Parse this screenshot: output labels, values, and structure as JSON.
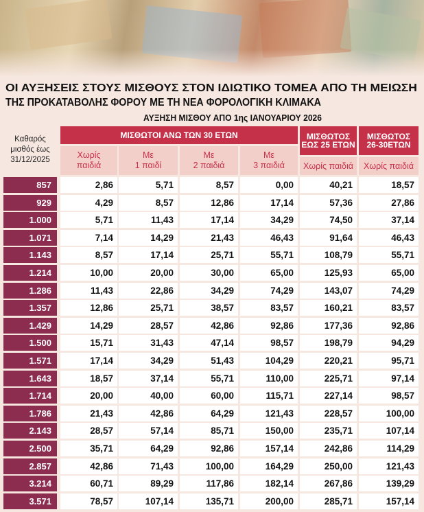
{
  "title": [
    "ΟΙ ΑΥΞΗΣΕΙΣ ΣΤΟΥΣ ΜΙΣΘΟΥΣ ΣΤΟΝ ΙΔΙΩΤΙΚΟ ΤΟΜΕΑ ΑΠΟ ΤΗ ΜΕΙΩΣΗ",
    "ΤΗΣ ΠΡΟΚΑΤΑΒΟΛΗΣ ΦΟΡΟΥ ΜΕ ΤΗ ΝΕΑ ΦΟΡΟΛΟΓΙΚΗ ΚΛΙΜΑΚΑ"
  ],
  "subtitle": "ΑΥΞΗΣΗ ΜΙΣΘΟΥ ΑΠΟ 1ης ΙΑΝΟΥΑΡΙΟΥ 2026",
  "table": {
    "corner_label": [
      "Καθαρός",
      "μισθός έως",
      "31/12/2025"
    ],
    "group_headers": [
      [
        "ΜΙΣΘΩΤΟΙ ΑΝΩ ΤΩΝ 30 ΕΤΩΝ"
      ],
      [
        "ΜΙΣΘΩΤΟΣ",
        "ΕΩΣ 25 ΕΤΩΝ"
      ],
      [
        "ΜΙΣΘΩΤΟΣ",
        "26-30ΕΤΩΝ"
      ]
    ],
    "sub_headers": [
      [
        "Χωρίς",
        "παιδιά"
      ],
      [
        "Με",
        "1 παιδί"
      ],
      [
        "Με",
        "2 παιδιά"
      ],
      [
        "Με",
        "3 παιδιά"
      ],
      [
        "Χωρίς παιδιά"
      ],
      [
        "Χωρίς παιδιά"
      ]
    ],
    "rows": [
      [
        "857",
        "2,86",
        "5,71",
        "8,57",
        "0,00",
        "40,21",
        "18,57"
      ],
      [
        "929",
        "4,29",
        "8,57",
        "12,86",
        "17,14",
        "57,36",
        "27,86"
      ],
      [
        "1.000",
        "5,71",
        "11,43",
        "17,14",
        "34,29",
        "74,50",
        "37,14"
      ],
      [
        "1.071",
        "7,14",
        "14,29",
        "21,43",
        "46,43",
        "91,64",
        "46,43"
      ],
      [
        "1.143",
        "8,57",
        "17,14",
        "25,71",
        "55,71",
        "108,79",
        "55,71"
      ],
      [
        "1.214",
        "10,00",
        "20,00",
        "30,00",
        "65,00",
        "125,93",
        "65,00"
      ],
      [
        "1.286",
        "11,43",
        "22,86",
        "34,29",
        "74,29",
        "143,07",
        "74,29"
      ],
      [
        "1.357",
        "12,86",
        "25,71",
        "38,57",
        "83,57",
        "160,21",
        "83,57"
      ],
      [
        "1.429",
        "14,29",
        "28,57",
        "42,86",
        "92,86",
        "177,36",
        "92,86"
      ],
      [
        "1.500",
        "15,71",
        "31,43",
        "47,14",
        "98,57",
        "198,79",
        "94,29"
      ],
      [
        "1.571",
        "17,14",
        "34,29",
        "51,43",
        "104,29",
        "220,21",
        "95,71"
      ],
      [
        "1.643",
        "18,57",
        "37,14",
        "55,71",
        "110,00",
        "225,71",
        "97,14"
      ],
      [
        "1.714",
        "20,00",
        "40,00",
        "60,00",
        "115,71",
        "227,14",
        "98,57"
      ],
      [
        "1.786",
        "21,43",
        "42,86",
        "64,29",
        "121,43",
        "228,57",
        "100,00"
      ],
      [
        "2.143",
        "28,57",
        "57,14",
        "85,71",
        "150,00",
        "235,71",
        "107,14"
      ],
      [
        "2.500",
        "35,71",
        "64,29",
        "92,86",
        "157,14",
        "242,86",
        "114,29"
      ],
      [
        "2.857",
        "42,86",
        "71,43",
        "100,00",
        "164,29",
        "250,00",
        "121,43"
      ],
      [
        "3.214",
        "60,71",
        "89,29",
        "117,86",
        "182,14",
        "267,86",
        "139,29"
      ],
      [
        "3.571",
        "78,57",
        "107,14",
        "135,71",
        "200,00",
        "285,71",
        "157,14"
      ]
    ]
  }
}
